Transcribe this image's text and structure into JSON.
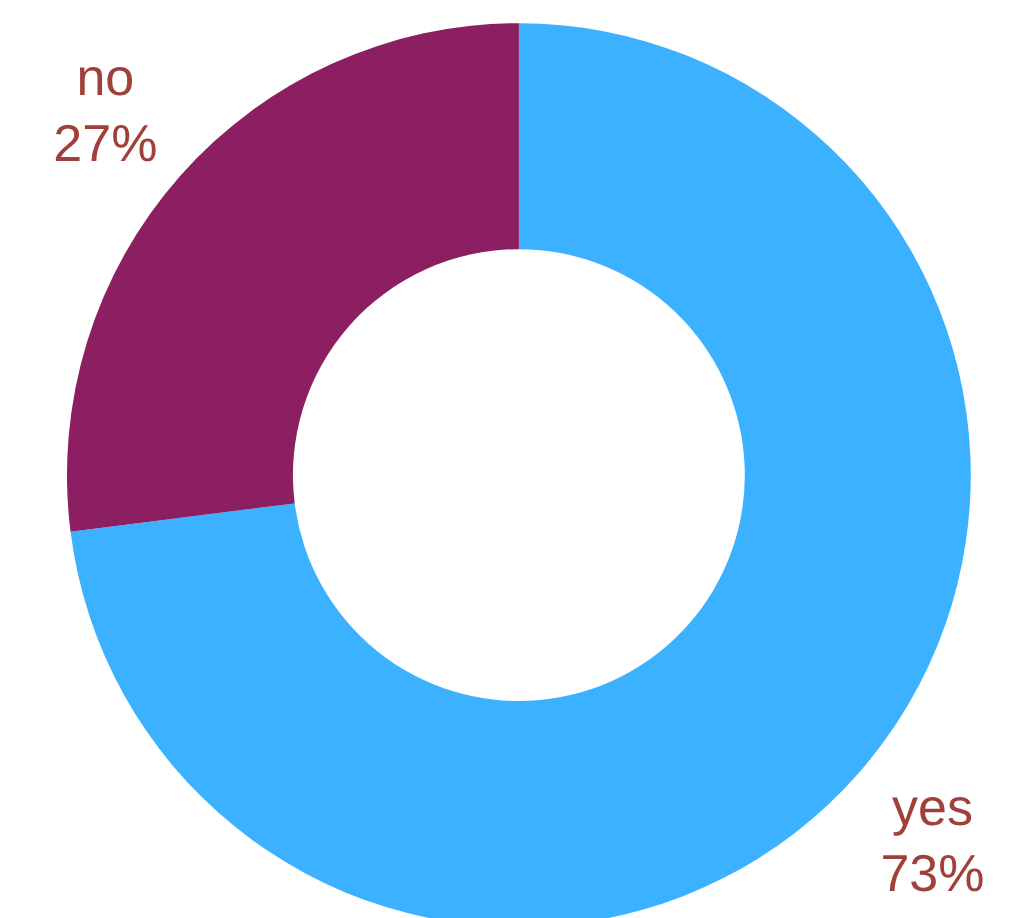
{
  "chart_data": {
    "type": "donut",
    "categories": [
      "yes",
      "no"
    ],
    "values": [
      73,
      27
    ],
    "colors": [
      "#3bb1ff",
      "#8b1f62"
    ],
    "value_labels": [
      "73%",
      "27%"
    ]
  }
}
